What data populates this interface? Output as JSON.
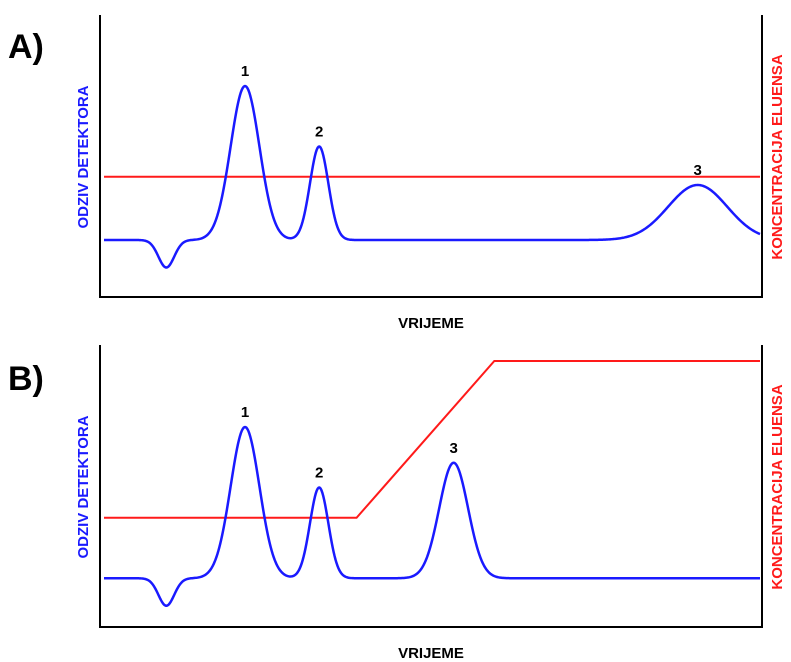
{
  "chart_data": [
    {
      "type": "line",
      "panel_label": "A)",
      "xlabel": "VRIJEME",
      "ylabel_left": "ODZIV DETEKTORA",
      "ylabel_right": "KONCENTRACIJA ELUENSA",
      "grid": false,
      "colors": {
        "detector": "#1a1aff",
        "eluent": "#ff1a1a",
        "axes": "#000000"
      },
      "detector": {
        "baseline": 0.2,
        "dip": {
          "x": 0.095,
          "depth": 0.1,
          "width": 0.012
        },
        "peaks": [
          {
            "label": "1",
            "x": 0.215,
            "height": 0.56,
            "width": 0.022
          },
          {
            "label": "2",
            "x": 0.328,
            "height": 0.34,
            "width": 0.014
          },
          {
            "label": "3",
            "x": 0.905,
            "height": 0.2,
            "width": 0.045
          }
        ]
      },
      "eluent": {
        "points": [
          [
            0.0,
            0.43
          ],
          [
            1.0,
            0.43
          ]
        ]
      }
    },
    {
      "type": "line",
      "panel_label": "B)",
      "xlabel": "VRIJEME",
      "ylabel_left": "ODZIV DETEKTORA",
      "ylabel_right": "KONCENTRACIJA ELUENSA",
      "grid": false,
      "colors": {
        "detector": "#1a1aff",
        "eluent": "#ff1a1a",
        "axes": "#000000"
      },
      "detector": {
        "baseline": 0.17,
        "dip": {
          "x": 0.095,
          "depth": 0.1,
          "width": 0.012
        },
        "peaks": [
          {
            "label": "1",
            "x": 0.215,
            "height": 0.55,
            "width": 0.022
          },
          {
            "label": "2",
            "x": 0.328,
            "height": 0.33,
            "width": 0.014
          },
          {
            "label": "3",
            "x": 0.533,
            "height": 0.42,
            "width": 0.022
          }
        ]
      },
      "eluent": {
        "points": [
          [
            0.0,
            0.39
          ],
          [
            0.385,
            0.39
          ],
          [
            0.595,
            0.96
          ],
          [
            1.0,
            0.96
          ]
        ]
      }
    }
  ]
}
